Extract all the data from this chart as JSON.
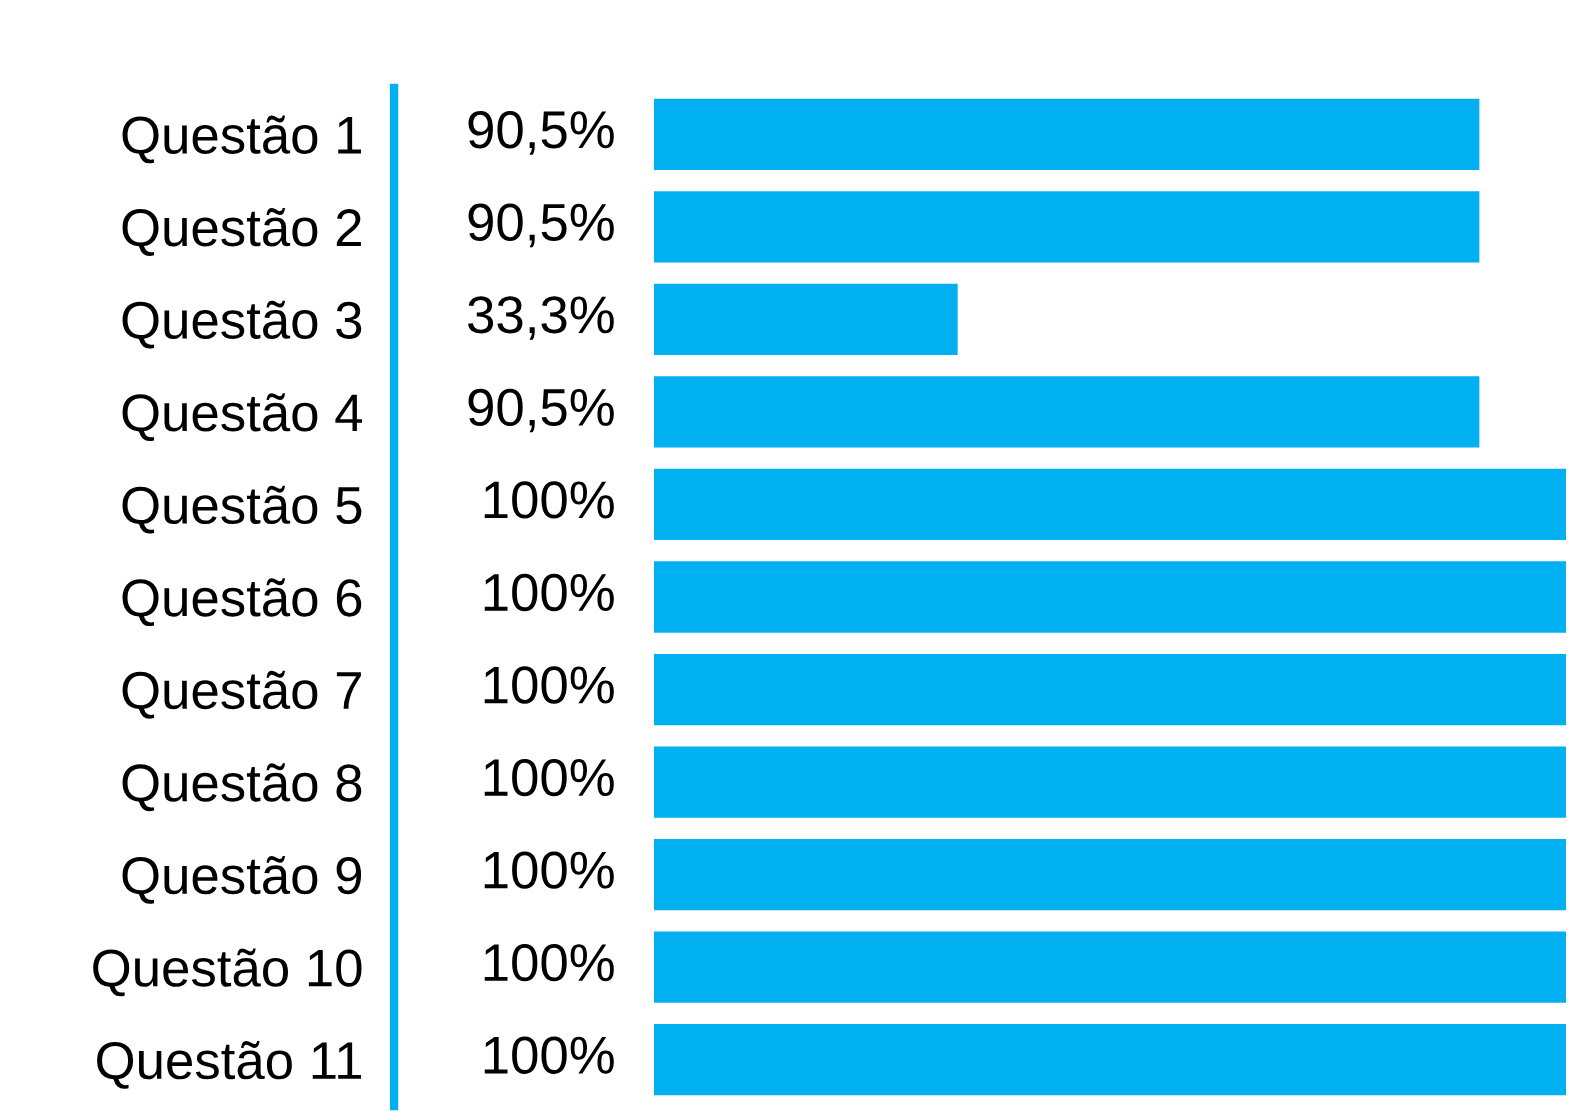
{
  "chart_data": {
    "type": "bar",
    "orientation": "horizontal",
    "categories": [
      "Questão 1",
      "Questão 2",
      "Questão 3",
      "Questão 4",
      "Questão 5",
      "Questão 6",
      "Questão 7",
      "Questão 8",
      "Questão 9",
      "Questão 10",
      "Questão 11"
    ],
    "values": [
      90.5,
      90.5,
      33.3,
      90.5,
      100,
      100,
      100,
      100,
      100,
      100,
      100
    ],
    "value_labels": [
      "90,5%",
      "90,5%",
      "33,3%",
      "90,5%",
      "100%",
      "100%",
      "100%",
      "100%",
      "100%",
      "100%",
      "100%"
    ],
    "color": "#00b0f0",
    "xlim": [
      0,
      100
    ],
    "tick_labels": "y"
  }
}
